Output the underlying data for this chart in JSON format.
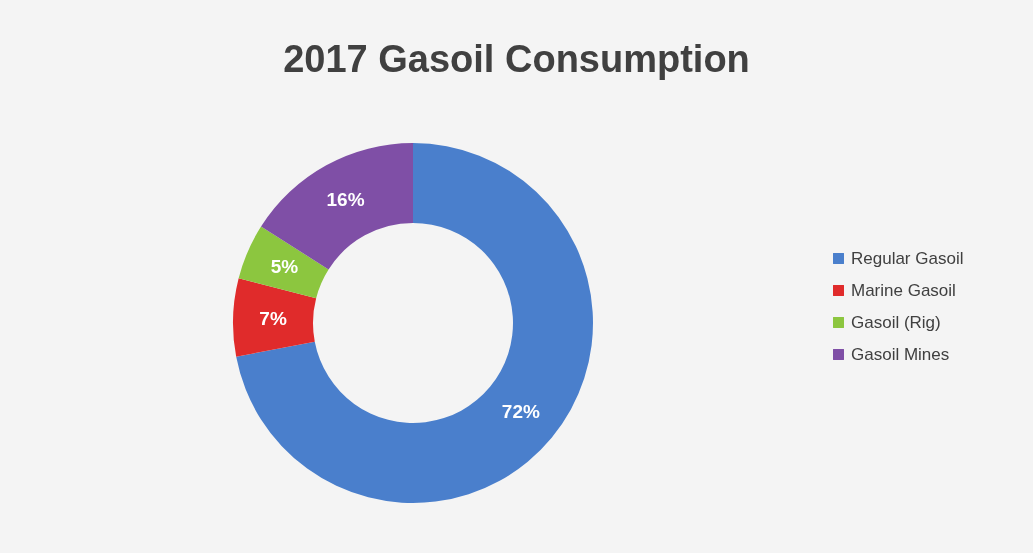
{
  "chart_data": {
    "type": "donut",
    "title": "2017 Gasoil Consumption",
    "categories": [
      "Regular Gasoil",
      "Marine Gasoil",
      "Gasoil  (Rig)",
      "Gasoil Mines"
    ],
    "values": [
      72,
      7,
      5,
      16
    ],
    "colors": [
      "#4a7fcc",
      "#e02b2b",
      "#8cc63f",
      "#7f4fa6"
    ],
    "value_labels": [
      "72%",
      "7%",
      "5%",
      "16%"
    ],
    "legend": "right"
  }
}
